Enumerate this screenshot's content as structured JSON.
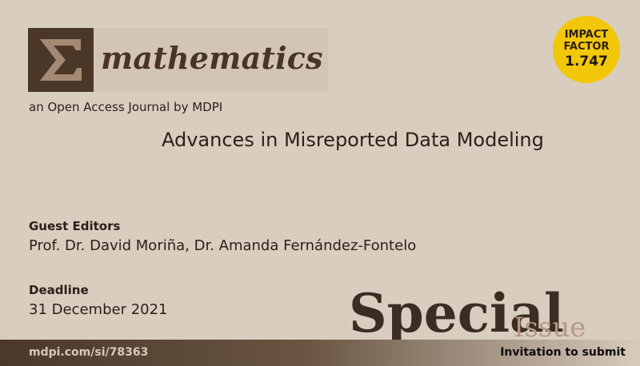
{
  "journal": {
    "logo_symbol": "Σ",
    "name": "mathematics",
    "publisher_line": "an Open Access Journal by MDPI"
  },
  "issue": {
    "title": "Advances in Misreported Data Modeling"
  },
  "impact_factor": {
    "label_line1": "IMPACT",
    "label_line2": "FACTOR",
    "value": "1.747",
    "badge_color": "#f2c70a"
  },
  "guest_editors": {
    "heading": "Guest Editors",
    "names": "Prof. Dr. David Moriña, Dr. Amanda Fernández-Fontelo"
  },
  "deadline": {
    "heading": "Deadline",
    "date": "31 December 2021"
  },
  "special_issue": {
    "word1": "Special",
    "word2": "Issue"
  },
  "footer": {
    "link": "mdpi.com/si/78363",
    "cta": "Invitation to submit"
  },
  "colors": {
    "background": "#d9cdbf",
    "brand_brown": "#4b3727",
    "text_dark": "#2b1f18"
  }
}
